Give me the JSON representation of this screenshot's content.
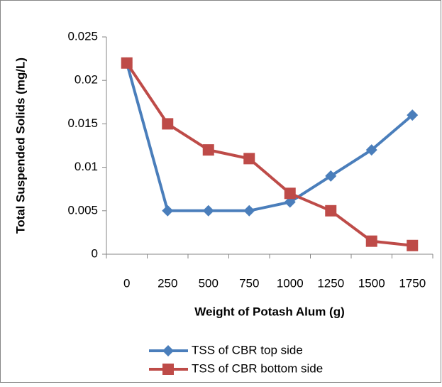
{
  "chart_data": {
    "type": "line",
    "x_label": "Weight of Potash Alum (g)",
    "y_label": "Total Suspended Solids (mg/L)",
    "categories": [
      "0",
      "250",
      "500",
      "750",
      "1000",
      "1250",
      "1500",
      "1750"
    ],
    "series": [
      {
        "name": "TSS of CBR top side",
        "color": "#4a7ebb",
        "marker": "diamond",
        "values": [
          0.022,
          0.005,
          0.005,
          0.005,
          0.006,
          0.009,
          0.012,
          0.016
        ]
      },
      {
        "name": "TSS of CBR bottom side",
        "color": "#be4b48",
        "marker": "square",
        "values": [
          0.022,
          0.015,
          0.012,
          0.011,
          0.007,
          0.005,
          0.0015,
          0.001
        ]
      }
    ],
    "ylim": [
      0,
      0.025
    ],
    "yticks": [
      0,
      0.005,
      0.01,
      0.015,
      0.02,
      0.025
    ],
    "grid": false,
    "legend": "bottom"
  }
}
